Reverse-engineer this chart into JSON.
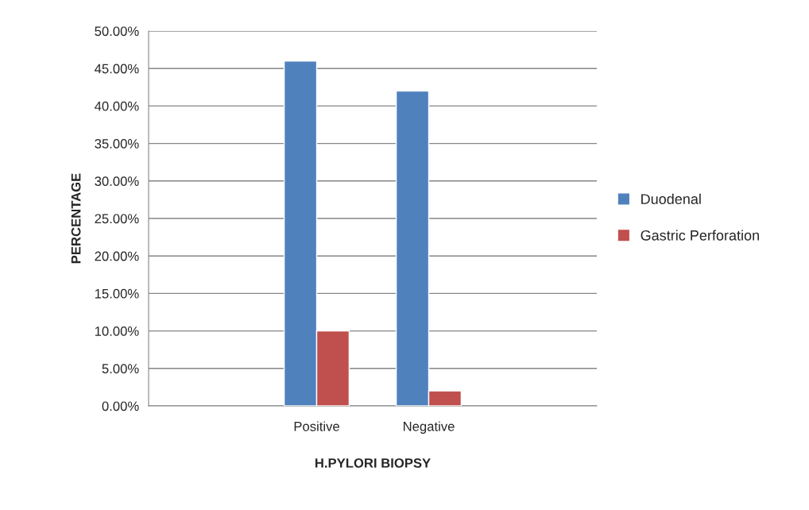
{
  "chart_data": {
    "type": "bar",
    "xlabel": "H.PYLORI BIOPSY",
    "ylabel": "PERCENTAGE",
    "categories": [
      null,
      "Positive",
      "Negative",
      null
    ],
    "series": [
      {
        "name": "Duodenal",
        "color": "#4f81bd",
        "values": [
          null,
          46,
          42,
          null
        ]
      },
      {
        "name": "Gastric Perforation",
        "color": "#c0504d",
        "values": [
          null,
          10,
          2,
          null
        ]
      }
    ],
    "ylim": [
      0,
      50
    ],
    "yticks": [
      {
        "value": 0,
        "label": "0.00%"
      },
      {
        "value": 5,
        "label": "5.00%"
      },
      {
        "value": 10,
        "label": "10.00%"
      },
      {
        "value": 15,
        "label": "15.00%"
      },
      {
        "value": 20,
        "label": "20.00%"
      },
      {
        "value": 25,
        "label": "25.00%"
      },
      {
        "value": 30,
        "label": "30.00%"
      },
      {
        "value": 35,
        "label": "35.00%"
      },
      {
        "value": 40,
        "label": "40.00%"
      },
      {
        "value": 45,
        "label": "45.00%"
      },
      {
        "value": 50,
        "label": "50.00%"
      }
    ],
    "grid": "y",
    "legend": "right"
  }
}
